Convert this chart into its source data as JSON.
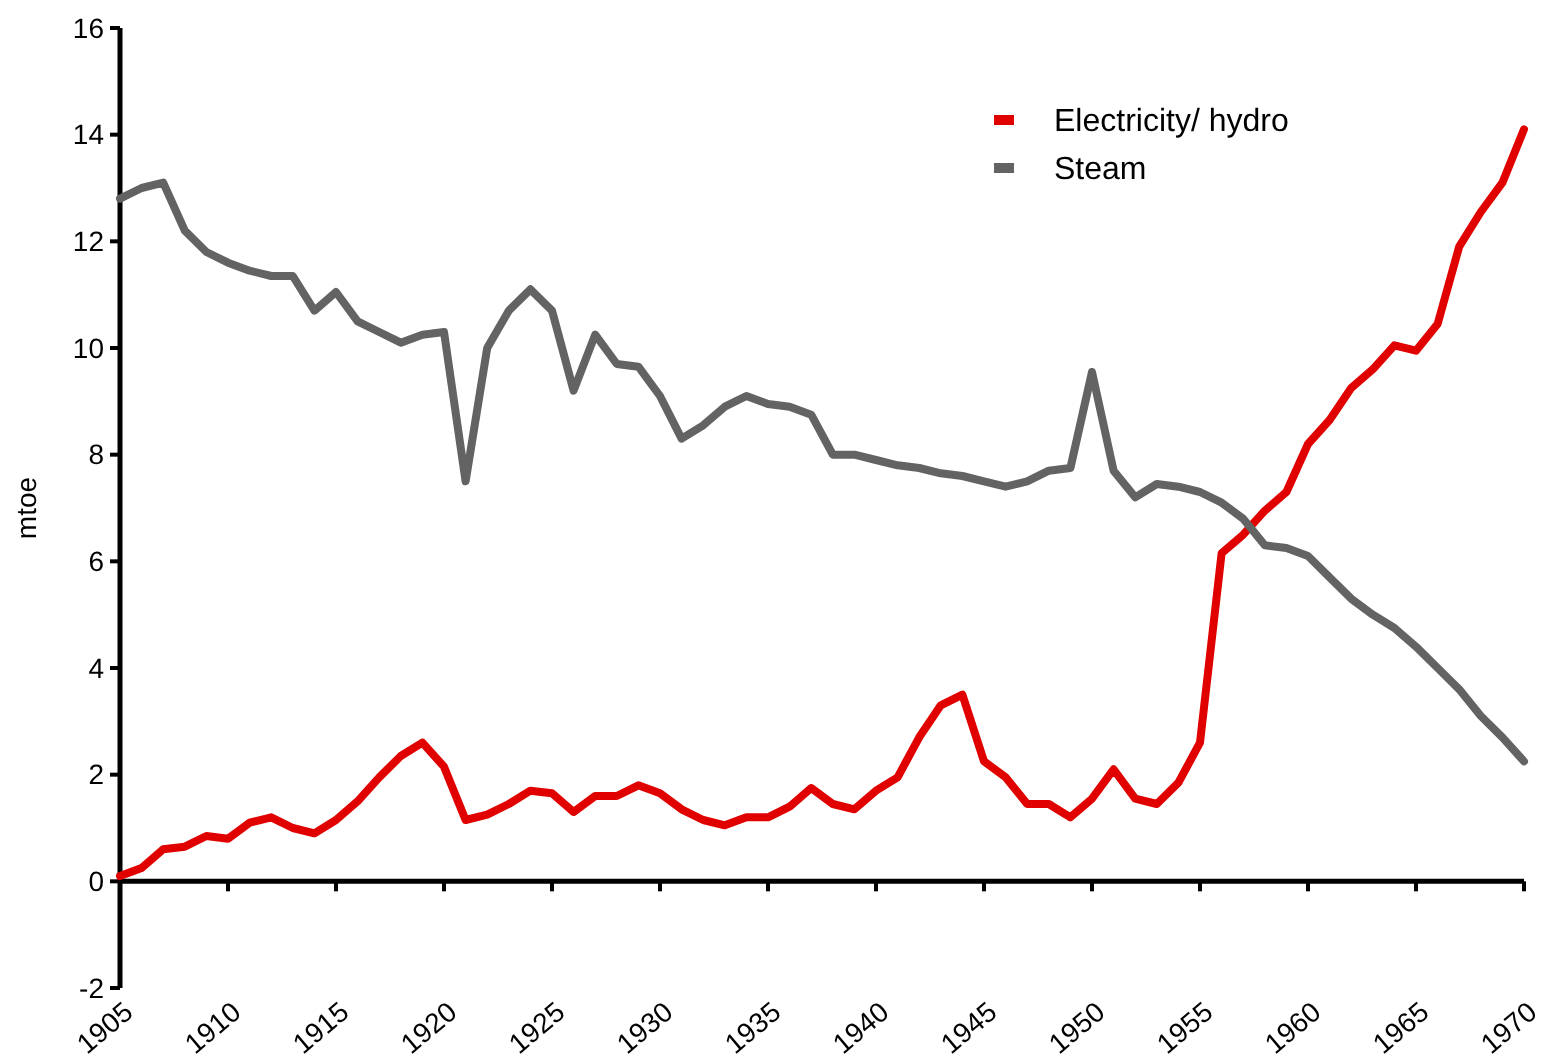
{
  "chart_data": {
    "type": "line",
    "ylabel": "mtoe",
    "x": [
      1905,
      1906,
      1907,
      1908,
      1909,
      1910,
      1911,
      1912,
      1913,
      1914,
      1915,
      1916,
      1917,
      1918,
      1919,
      1920,
      1921,
      1922,
      1923,
      1924,
      1925,
      1926,
      1927,
      1928,
      1929,
      1930,
      1931,
      1932,
      1933,
      1934,
      1935,
      1936,
      1937,
      1938,
      1939,
      1940,
      1941,
      1942,
      1943,
      1944,
      1945,
      1946,
      1947,
      1948,
      1949,
      1950,
      1951,
      1952,
      1953,
      1954,
      1955,
      1956,
      1957,
      1958,
      1959,
      1960,
      1961,
      1962,
      1963,
      1964,
      1965,
      1966,
      1967,
      1968,
      1969,
      1970
    ],
    "series": [
      {
        "name": "Electricity/ hydro",
        "color": "#e00000",
        "values": [
          0.1,
          0.25,
          0.6,
          0.65,
          0.85,
          0.8,
          1.1,
          1.2,
          1.0,
          0.9,
          1.15,
          1.5,
          1.95,
          2.35,
          2.6,
          2.15,
          1.15,
          1.25,
          1.45,
          1.7,
          1.65,
          1.3,
          1.6,
          1.6,
          1.8,
          1.65,
          1.35,
          1.15,
          1.05,
          1.2,
          1.2,
          1.4,
          1.75,
          1.45,
          1.35,
          1.7,
          1.95,
          2.7,
          3.3,
          3.5,
          2.25,
          1.95,
          1.45,
          1.45,
          1.2,
          1.55,
          2.1,
          1.55,
          1.45,
          1.85,
          2.6,
          6.15,
          6.5,
          6.95,
          7.3,
          8.2,
          8.65,
          9.25,
          9.6,
          10.05,
          9.95,
          10.45,
          11.9,
          12.55,
          13.1,
          14.1
        ]
      },
      {
        "name": "Steam",
        "color": "#636363",
        "values": [
          12.8,
          13.0,
          13.1,
          12.2,
          11.8,
          11.6,
          11.45,
          11.35,
          11.35,
          10.7,
          11.05,
          10.5,
          10.3,
          10.1,
          10.25,
          10.3,
          7.5,
          10.0,
          10.7,
          11.1,
          10.7,
          9.2,
          10.25,
          9.7,
          9.65,
          9.1,
          8.3,
          8.55,
          8.9,
          9.1,
          8.95,
          8.9,
          8.75,
          8.0,
          8.0,
          7.9,
          7.8,
          7.75,
          7.65,
          7.6,
          7.5,
          7.4,
          7.5,
          7.7,
          7.75,
          9.55,
          7.7,
          7.2,
          7.45,
          7.4,
          7.3,
          7.1,
          6.8,
          6.3,
          6.25,
          6.1,
          5.7,
          5.3,
          5.0,
          4.75,
          4.4,
          4.0,
          3.6,
          3.1,
          2.7,
          2.25
        ]
      }
    ],
    "xlim": [
      1905,
      1970
    ],
    "xticks": [
      1905,
      1910,
      1915,
      1920,
      1925,
      1930,
      1935,
      1940,
      1945,
      1950,
      1955,
      1960,
      1965,
      1970
    ],
    "ylim": [
      -2,
      16
    ],
    "yticks": [
      -2,
      0,
      2,
      4,
      6,
      8,
      10,
      12,
      14,
      16
    ],
    "legend": "top right",
    "marker": "none",
    "line_style": "solid"
  }
}
